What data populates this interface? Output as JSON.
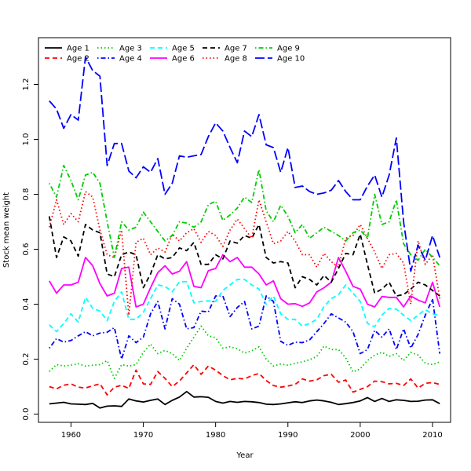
{
  "chart_data": {
    "type": "line",
    "xlabel": "Year",
    "ylabel": "Stock mean weight",
    "xlim": [
      1955.5,
      2012.5
    ],
    "ylim": [
      -0.03,
      1.37
    ],
    "x_ticks": [
      "1960",
      "1970",
      "1980",
      "1990",
      "2000",
      "2010"
    ],
    "y_ticks": [
      "0.0",
      "0.2",
      "0.4",
      "0.6",
      "0.8",
      "1.0",
      "1.2"
    ],
    "grid": false,
    "legend": "top-left",
    "x": [
      1957,
      1958,
      1959,
      1960,
      1961,
      1962,
      1963,
      1964,
      1965,
      1966,
      1967,
      1968,
      1969,
      1970,
      1971,
      1972,
      1973,
      1974,
      1975,
      1976,
      1977,
      1978,
      1979,
      1980,
      1981,
      1982,
      1983,
      1984,
      1985,
      1986,
      1987,
      1988,
      1989,
      1990,
      1991,
      1992,
      1993,
      1994,
      1995,
      1996,
      1997,
      1998,
      1999,
      2000,
      2001,
      2002,
      2003,
      2004,
      2005,
      2006,
      2007,
      2008,
      2009,
      2010,
      2011
    ],
    "series": [
      {
        "name": "Age 1",
        "color": "#000000",
        "dash": "solid",
        "values": [
          0.037,
          0.04,
          0.043,
          0.037,
          0.036,
          0.035,
          0.039,
          0.022,
          0.029,
          0.03,
          0.028,
          0.055,
          0.048,
          0.044,
          0.05,
          0.055,
          0.035,
          0.05,
          0.062,
          0.082,
          0.062,
          0.063,
          0.061,
          0.046,
          0.04,
          0.046,
          0.043,
          0.046,
          0.045,
          0.042,
          0.036,
          0.035,
          0.037,
          0.041,
          0.045,
          0.042,
          0.048,
          0.051,
          0.048,
          0.043,
          0.035,
          0.038,
          0.042,
          0.048,
          0.06,
          0.046,
          0.057,
          0.046,
          0.052,
          0.05,
          0.046,
          0.047,
          0.051,
          0.052,
          0.038
        ]
      },
      {
        "name": "Age 2",
        "color": "#ff0000",
        "dash": "dashed",
        "values": [
          0.1,
          0.092,
          0.105,
          0.11,
          0.098,
          0.095,
          0.103,
          0.11,
          0.07,
          0.098,
          0.105,
          0.093,
          0.16,
          0.11,
          0.108,
          0.155,
          0.13,
          0.1,
          0.12,
          0.15,
          0.18,
          0.145,
          0.175,
          0.16,
          0.14,
          0.125,
          0.13,
          0.128,
          0.14,
          0.148,
          0.122,
          0.104,
          0.098,
          0.102,
          0.108,
          0.128,
          0.12,
          0.125,
          0.14,
          0.145,
          0.116,
          0.124,
          0.08,
          0.09,
          0.1,
          0.12,
          0.118,
          0.11,
          0.112,
          0.104,
          0.128,
          0.095,
          0.112,
          0.115,
          0.108
        ]
      },
      {
        "name": "Age 3",
        "color": "#00cd00",
        "dash": "dotted",
        "values": [
          0.155,
          0.18,
          0.175,
          0.178,
          0.183,
          0.175,
          0.178,
          0.18,
          0.195,
          0.13,
          0.18,
          0.175,
          0.18,
          0.225,
          0.255,
          0.22,
          0.232,
          0.22,
          0.195,
          0.24,
          0.28,
          0.32,
          0.285,
          0.278,
          0.24,
          0.245,
          0.238,
          0.222,
          0.23,
          0.245,
          0.2,
          0.175,
          0.182,
          0.178,
          0.185,
          0.19,
          0.198,
          0.21,
          0.248,
          0.235,
          0.235,
          0.205,
          0.153,
          0.165,
          0.195,
          0.215,
          0.225,
          0.21,
          0.22,
          0.195,
          0.225,
          0.215,
          0.185,
          0.18,
          0.19
        ]
      },
      {
        "name": "Age 4",
        "color": "#0000ff",
        "dash": "dashdot",
        "values": [
          0.24,
          0.275,
          0.262,
          0.268,
          0.285,
          0.3,
          0.285,
          0.295,
          0.298,
          0.315,
          0.2,
          0.285,
          0.26,
          0.28,
          0.365,
          0.41,
          0.31,
          0.42,
          0.4,
          0.31,
          0.315,
          0.375,
          0.372,
          0.43,
          0.43,
          0.355,
          0.388,
          0.41,
          0.31,
          0.32,
          0.43,
          0.41,
          0.265,
          0.25,
          0.262,
          0.26,
          0.27,
          0.3,
          0.33,
          0.365,
          0.35,
          0.335,
          0.3,
          0.22,
          0.235,
          0.305,
          0.28,
          0.31,
          0.235,
          0.31,
          0.24,
          0.29,
          0.36,
          0.42,
          0.22
        ]
      },
      {
        "name": "Age 5",
        "color": "#00ffff",
        "dash": "dashed",
        "values": [
          0.325,
          0.3,
          0.33,
          0.365,
          0.335,
          0.425,
          0.385,
          0.375,
          0.34,
          0.41,
          0.445,
          0.345,
          0.345,
          0.37,
          0.42,
          0.47,
          0.465,
          0.445,
          0.482,
          0.482,
          0.405,
          0.41,
          0.412,
          0.41,
          0.45,
          0.47,
          0.49,
          0.49,
          0.47,
          0.455,
          0.4,
          0.43,
          0.365,
          0.345,
          0.345,
          0.32,
          0.33,
          0.345,
          0.392,
          0.42,
          0.435,
          0.47,
          0.44,
          0.41,
          0.33,
          0.318,
          0.36,
          0.385,
          0.382,
          0.36,
          0.34,
          0.36,
          0.38,
          0.365,
          0.358
        ]
      },
      {
        "name": "Age 6",
        "color": "#ff00ff",
        "dash": "solid",
        "values": [
          0.485,
          0.44,
          0.47,
          0.47,
          0.48,
          0.57,
          0.54,
          0.475,
          0.43,
          0.44,
          0.53,
          0.535,
          0.39,
          0.4,
          0.46,
          0.515,
          0.54,
          0.51,
          0.52,
          0.555,
          0.465,
          0.46,
          0.522,
          0.53,
          0.58,
          0.555,
          0.57,
          0.535,
          0.535,
          0.51,
          0.47,
          0.485,
          0.42,
          0.4,
          0.402,
          0.392,
          0.405,
          0.445,
          0.46,
          0.48,
          0.57,
          0.52,
          0.465,
          0.455,
          0.4,
          0.39,
          0.428,
          0.425,
          0.425,
          0.39,
          0.43,
          0.415,
          0.405,
          0.48,
          0.39
        ]
      },
      {
        "name": "Age 7",
        "color": "#000000",
        "dash": "dashed",
        "values": [
          0.72,
          0.57,
          0.645,
          0.63,
          0.575,
          0.69,
          0.67,
          0.66,
          0.51,
          0.5,
          0.58,
          0.59,
          0.58,
          0.46,
          0.51,
          0.58,
          0.565,
          0.57,
          0.605,
          0.595,
          0.625,
          0.545,
          0.545,
          0.58,
          0.565,
          0.63,
          0.622,
          0.65,
          0.64,
          0.69,
          0.57,
          0.55,
          0.555,
          0.55,
          0.46,
          0.5,
          0.49,
          0.47,
          0.505,
          0.48,
          0.53,
          0.585,
          0.58,
          0.655,
          0.545,
          0.44,
          0.455,
          0.48,
          0.43,
          0.435,
          0.455,
          0.48,
          0.47,
          0.45,
          0.43
        ]
      },
      {
        "name": "Age 8",
        "color": "#ff0000",
        "dash": "dotted",
        "values": [
          0.68,
          0.78,
          0.69,
          0.73,
          0.7,
          0.81,
          0.79,
          0.67,
          0.58,
          0.57,
          0.67,
          0.36,
          0.625,
          0.64,
          0.58,
          0.605,
          0.59,
          0.655,
          0.63,
          0.66,
          0.675,
          0.625,
          0.665,
          0.65,
          0.61,
          0.67,
          0.71,
          0.675,
          0.64,
          0.78,
          0.7,
          0.62,
          0.63,
          0.665,
          0.63,
          0.58,
          0.58,
          0.535,
          0.585,
          0.555,
          0.535,
          0.64,
          0.65,
          0.69,
          0.64,
          0.59,
          0.53,
          0.58,
          0.585,
          0.55,
          0.4,
          0.63,
          0.545,
          0.58,
          0.42
        ]
      },
      {
        "name": "Age 9",
        "color": "#00cd00",
        "dash": "dashdot",
        "values": [
          0.84,
          0.79,
          0.905,
          0.85,
          0.78,
          0.87,
          0.88,
          0.84,
          0.7,
          0.57,
          0.7,
          0.67,
          0.68,
          0.735,
          0.7,
          0.665,
          0.63,
          0.65,
          0.7,
          0.695,
          0.68,
          0.7,
          0.762,
          0.775,
          0.705,
          0.725,
          0.75,
          0.79,
          0.77,
          0.89,
          0.74,
          0.7,
          0.76,
          0.72,
          0.66,
          0.69,
          0.64,
          0.66,
          0.68,
          0.665,
          0.65,
          0.63,
          0.66,
          0.67,
          0.64,
          0.8,
          0.69,
          0.7,
          0.78,
          0.62,
          0.58,
          0.56,
          0.6,
          0.57,
          0.54
        ]
      },
      {
        "name": "Age 10",
        "color": "#0000ff",
        "dash": "longdash",
        "values": [
          1.14,
          1.11,
          1.04,
          1.09,
          1.07,
          1.3,
          1.25,
          1.23,
          0.905,
          0.985,
          0.985,
          0.885,
          0.86,
          0.9,
          0.88,
          0.93,
          0.8,
          0.84,
          0.94,
          0.935,
          0.94,
          0.945,
          1.01,
          1.06,
          1.03,
          0.97,
          0.915,
          1.03,
          1.01,
          1.09,
          0.98,
          0.97,
          0.88,
          0.97,
          0.825,
          0.83,
          0.81,
          0.8,
          0.805,
          0.815,
          0.85,
          0.81,
          0.78,
          0.78,
          0.83,
          0.87,
          0.79,
          0.87,
          1.005,
          0.7,
          0.52,
          0.615,
          0.56,
          0.65,
          0.57
        ]
      }
    ]
  }
}
